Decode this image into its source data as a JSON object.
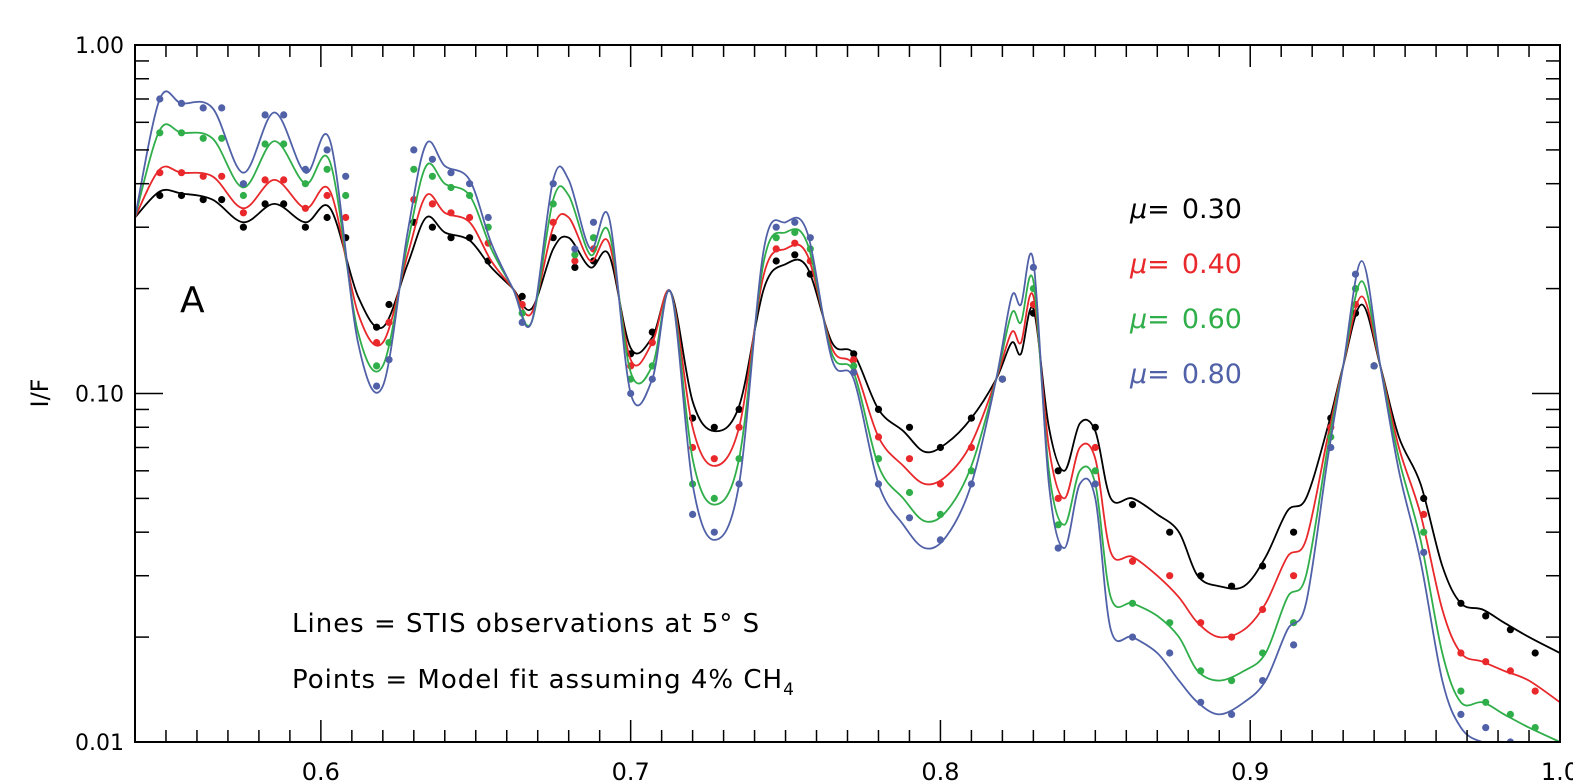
{
  "chart_data": {
    "type": "line",
    "title": "",
    "xlabel": "",
    "ylabel": "I/F",
    "panel_label": "A",
    "ylog": true,
    "xlim": [
      0.54,
      1.0
    ],
    "ylim": [
      0.01,
      1.0
    ],
    "x_ticks": [
      "0.6",
      "0.7",
      "0.8",
      "0.9",
      "1.0"
    ],
    "y_ticks": [
      "1.00",
      "0.10",
      "0.01"
    ],
    "grid": false,
    "legend_position": "top-right",
    "annotations": {
      "line1": "Lines = STIS observations at 5° S",
      "line2_prefix": "Points = Model fit assuming 4% CH",
      "line2_sub": "4"
    },
    "series": [
      {
        "name": "μ= 0.30",
        "mu_symbol": "μ=",
        "mu_value": "0.30",
        "color": "#000000",
        "x": [
          0.54,
          0.548,
          0.555,
          0.565,
          0.575,
          0.585,
          0.595,
          0.603,
          0.612,
          0.62,
          0.628,
          0.634,
          0.64,
          0.648,
          0.655,
          0.662,
          0.668,
          0.675,
          0.68,
          0.687,
          0.693,
          0.7,
          0.707,
          0.713,
          0.72,
          0.727,
          0.735,
          0.743,
          0.75,
          0.757,
          0.765,
          0.772,
          0.78,
          0.788,
          0.795,
          0.802,
          0.81,
          0.818,
          0.823,
          0.826,
          0.83,
          0.835,
          0.84,
          0.845,
          0.85,
          0.855,
          0.862,
          0.87,
          0.877,
          0.883,
          0.89,
          0.898,
          0.905,
          0.912,
          0.918,
          0.925,
          0.93,
          0.936,
          0.942,
          0.948,
          0.955,
          0.962,
          0.968,
          0.975,
          0.982,
          0.99,
          1.0
        ],
        "values": [
          0.32,
          0.38,
          0.375,
          0.36,
          0.31,
          0.35,
          0.31,
          0.34,
          0.19,
          0.155,
          0.235,
          0.32,
          0.29,
          0.275,
          0.23,
          0.2,
          0.175,
          0.26,
          0.28,
          0.23,
          0.25,
          0.135,
          0.145,
          0.195,
          0.095,
          0.078,
          0.092,
          0.2,
          0.235,
          0.23,
          0.14,
          0.13,
          0.09,
          0.078,
          0.068,
          0.072,
          0.085,
          0.11,
          0.14,
          0.13,
          0.175,
          0.08,
          0.06,
          0.082,
          0.078,
          0.05,
          0.05,
          0.045,
          0.04,
          0.03,
          0.028,
          0.028,
          0.034,
          0.046,
          0.05,
          0.08,
          0.12,
          0.18,
          0.12,
          0.075,
          0.055,
          0.032,
          0.025,
          0.024,
          0.022,
          0.02,
          0.018
        ],
        "points_x": [
          0.548,
          0.555,
          0.562,
          0.568,
          0.575,
          0.582,
          0.588,
          0.595,
          0.602,
          0.608,
          0.618,
          0.622,
          0.63,
          0.636,
          0.642,
          0.648,
          0.654,
          0.665,
          0.675,
          0.682,
          0.688,
          0.7,
          0.707,
          0.72,
          0.727,
          0.735,
          0.747,
          0.753,
          0.758,
          0.772,
          0.78,
          0.79,
          0.8,
          0.81,
          0.82,
          0.83,
          0.838,
          0.85,
          0.862,
          0.874,
          0.884,
          0.894,
          0.904,
          0.914,
          0.926,
          0.934,
          0.94,
          0.956,
          0.968,
          0.976,
          0.984,
          0.992
        ],
        "points_y": [
          0.37,
          0.37,
          0.36,
          0.36,
          0.3,
          0.35,
          0.35,
          0.3,
          0.32,
          0.28,
          0.155,
          0.18,
          0.31,
          0.3,
          0.28,
          0.28,
          0.24,
          0.19,
          0.28,
          0.23,
          0.24,
          0.13,
          0.15,
          0.085,
          0.08,
          0.09,
          0.24,
          0.25,
          0.22,
          0.13,
          0.09,
          0.08,
          0.07,
          0.085,
          0.11,
          0.17,
          0.06,
          0.08,
          0.048,
          0.04,
          0.03,
          0.028,
          0.032,
          0.04,
          0.085,
          0.17,
          0.12,
          0.05,
          0.025,
          0.023,
          0.021,
          0.018
        ]
      },
      {
        "name": "μ= 0.40",
        "mu_symbol": "μ=",
        "mu_value": "0.40",
        "color": "#e8282b",
        "x": [
          0.54,
          0.548,
          0.555,
          0.565,
          0.575,
          0.585,
          0.595,
          0.603,
          0.612,
          0.62,
          0.628,
          0.634,
          0.64,
          0.648,
          0.655,
          0.662,
          0.668,
          0.675,
          0.68,
          0.687,
          0.693,
          0.7,
          0.707,
          0.713,
          0.72,
          0.727,
          0.735,
          0.743,
          0.75,
          0.757,
          0.765,
          0.772,
          0.78,
          0.788,
          0.795,
          0.802,
          0.81,
          0.818,
          0.823,
          0.826,
          0.83,
          0.835,
          0.84,
          0.845,
          0.85,
          0.855,
          0.862,
          0.87,
          0.877,
          0.883,
          0.89,
          0.898,
          0.905,
          0.912,
          0.918,
          0.925,
          0.93,
          0.936,
          0.942,
          0.948,
          0.955,
          0.962,
          0.968,
          0.975,
          0.982,
          0.99,
          1.0
        ],
        "values": [
          0.32,
          0.44,
          0.43,
          0.42,
          0.34,
          0.41,
          0.34,
          0.38,
          0.17,
          0.14,
          0.25,
          0.37,
          0.33,
          0.31,
          0.24,
          0.2,
          0.17,
          0.3,
          0.32,
          0.24,
          0.27,
          0.125,
          0.14,
          0.195,
          0.08,
          0.062,
          0.08,
          0.22,
          0.26,
          0.25,
          0.135,
          0.12,
          0.075,
          0.062,
          0.055,
          0.058,
          0.072,
          0.11,
          0.15,
          0.14,
          0.19,
          0.07,
          0.05,
          0.07,
          0.065,
          0.035,
          0.034,
          0.03,
          0.026,
          0.022,
          0.02,
          0.021,
          0.025,
          0.034,
          0.038,
          0.075,
          0.12,
          0.19,
          0.12,
          0.07,
          0.045,
          0.024,
          0.018,
          0.017,
          0.016,
          0.015,
          0.013
        ],
        "points_x": [
          0.548,
          0.555,
          0.562,
          0.568,
          0.575,
          0.582,
          0.588,
          0.595,
          0.602,
          0.608,
          0.618,
          0.622,
          0.63,
          0.636,
          0.642,
          0.648,
          0.654,
          0.665,
          0.675,
          0.682,
          0.688,
          0.7,
          0.707,
          0.72,
          0.727,
          0.735,
          0.747,
          0.753,
          0.758,
          0.772,
          0.78,
          0.79,
          0.8,
          0.81,
          0.82,
          0.83,
          0.838,
          0.85,
          0.862,
          0.874,
          0.884,
          0.894,
          0.904,
          0.914,
          0.926,
          0.934,
          0.94,
          0.956,
          0.968,
          0.976,
          0.984,
          0.992
        ],
        "points_y": [
          0.43,
          0.43,
          0.42,
          0.42,
          0.33,
          0.41,
          0.41,
          0.34,
          0.37,
          0.32,
          0.14,
          0.16,
          0.36,
          0.35,
          0.33,
          0.32,
          0.27,
          0.18,
          0.31,
          0.24,
          0.26,
          0.12,
          0.14,
          0.07,
          0.065,
          0.08,
          0.26,
          0.27,
          0.24,
          0.125,
          0.075,
          0.065,
          0.055,
          0.07,
          0.11,
          0.18,
          0.05,
          0.07,
          0.033,
          0.03,
          0.022,
          0.02,
          0.024,
          0.03,
          0.08,
          0.18,
          0.12,
          0.045,
          0.018,
          0.017,
          0.016,
          0.014
        ]
      },
      {
        "name": "μ= 0.60",
        "mu_symbol": "μ=",
        "mu_value": "0.60",
        "color": "#2fae4a",
        "x": [
          0.54,
          0.548,
          0.555,
          0.565,
          0.575,
          0.585,
          0.595,
          0.603,
          0.612,
          0.62,
          0.628,
          0.634,
          0.64,
          0.648,
          0.655,
          0.662,
          0.668,
          0.675,
          0.68,
          0.687,
          0.693,
          0.7,
          0.707,
          0.713,
          0.72,
          0.727,
          0.735,
          0.743,
          0.75,
          0.757,
          0.765,
          0.772,
          0.78,
          0.788,
          0.795,
          0.802,
          0.81,
          0.818,
          0.823,
          0.826,
          0.83,
          0.835,
          0.84,
          0.845,
          0.85,
          0.855,
          0.862,
          0.87,
          0.877,
          0.883,
          0.89,
          0.898,
          0.905,
          0.912,
          0.918,
          0.925,
          0.93,
          0.936,
          0.942,
          0.948,
          0.955,
          0.962,
          0.968,
          0.975,
          0.982,
          0.99,
          1.0
        ],
        "values": [
          0.32,
          0.57,
          0.56,
          0.54,
          0.39,
          0.53,
          0.4,
          0.46,
          0.15,
          0.12,
          0.27,
          0.45,
          0.4,
          0.37,
          0.26,
          0.2,
          0.16,
          0.36,
          0.37,
          0.25,
          0.29,
          0.115,
          0.12,
          0.195,
          0.065,
          0.048,
          0.065,
          0.24,
          0.29,
          0.27,
          0.13,
          0.115,
          0.062,
          0.05,
          0.043,
          0.046,
          0.062,
          0.11,
          0.17,
          0.16,
          0.21,
          0.06,
          0.042,
          0.06,
          0.055,
          0.026,
          0.025,
          0.023,
          0.02,
          0.016,
          0.015,
          0.016,
          0.018,
          0.026,
          0.03,
          0.07,
          0.12,
          0.21,
          0.12,
          0.065,
          0.038,
          0.018,
          0.013,
          0.013,
          0.012,
          0.011,
          0.01
        ],
        "points_x": [
          0.548,
          0.555,
          0.562,
          0.568,
          0.575,
          0.582,
          0.588,
          0.595,
          0.602,
          0.608,
          0.618,
          0.622,
          0.63,
          0.636,
          0.642,
          0.648,
          0.654,
          0.665,
          0.675,
          0.682,
          0.688,
          0.7,
          0.707,
          0.72,
          0.727,
          0.735,
          0.747,
          0.753,
          0.758,
          0.772,
          0.78,
          0.79,
          0.8,
          0.81,
          0.82,
          0.83,
          0.838,
          0.85,
          0.862,
          0.874,
          0.884,
          0.894,
          0.904,
          0.914,
          0.926,
          0.934,
          0.94,
          0.956,
          0.968,
          0.976,
          0.984,
          0.992
        ],
        "points_y": [
          0.56,
          0.56,
          0.54,
          0.54,
          0.37,
          0.52,
          0.52,
          0.4,
          0.44,
          0.37,
          0.12,
          0.14,
          0.44,
          0.42,
          0.39,
          0.37,
          0.3,
          0.17,
          0.35,
          0.25,
          0.28,
          0.11,
          0.12,
          0.055,
          0.05,
          0.065,
          0.28,
          0.29,
          0.26,
          0.12,
          0.065,
          0.052,
          0.045,
          0.06,
          0.11,
          0.2,
          0.042,
          0.06,
          0.025,
          0.022,
          0.016,
          0.015,
          0.018,
          0.022,
          0.075,
          0.2,
          0.12,
          0.04,
          0.014,
          0.013,
          0.012,
          0.011
        ]
      },
      {
        "name": "μ= 0.80",
        "mu_symbol": "μ=",
        "mu_value": "0.80",
        "color": "#5061a8",
        "x": [
          0.54,
          0.548,
          0.555,
          0.565,
          0.575,
          0.585,
          0.595,
          0.603,
          0.612,
          0.62,
          0.628,
          0.634,
          0.64,
          0.648,
          0.655,
          0.662,
          0.668,
          0.675,
          0.68,
          0.687,
          0.693,
          0.7,
          0.707,
          0.713,
          0.72,
          0.727,
          0.735,
          0.743,
          0.75,
          0.757,
          0.765,
          0.772,
          0.78,
          0.788,
          0.795,
          0.802,
          0.81,
          0.818,
          0.823,
          0.826,
          0.83,
          0.835,
          0.84,
          0.845,
          0.85,
          0.855,
          0.862,
          0.87,
          0.877,
          0.883,
          0.89,
          0.898,
          0.905,
          0.912,
          0.918,
          0.925,
          0.93,
          0.936,
          0.942,
          0.948,
          0.955,
          0.962,
          0.968,
          0.975,
          0.982,
          0.99,
          1.0
        ],
        "values": [
          0.32,
          0.7,
          0.68,
          0.66,
          0.43,
          0.64,
          0.43,
          0.53,
          0.14,
          0.105,
          0.29,
          0.52,
          0.45,
          0.41,
          0.27,
          0.2,
          0.16,
          0.41,
          0.41,
          0.26,
          0.32,
          0.1,
          0.11,
          0.195,
          0.055,
          0.038,
          0.055,
          0.26,
          0.31,
          0.29,
          0.125,
          0.11,
          0.055,
          0.042,
          0.036,
          0.039,
          0.055,
          0.11,
          0.19,
          0.18,
          0.24,
          0.055,
          0.036,
          0.055,
          0.05,
          0.021,
          0.02,
          0.018,
          0.015,
          0.013,
          0.012,
          0.013,
          0.015,
          0.021,
          0.025,
          0.065,
          0.12,
          0.24,
          0.12,
          0.06,
          0.033,
          0.015,
          0.011,
          0.01,
          0.01,
          0.0095,
          0.009
        ],
        "points_x": [
          0.548,
          0.555,
          0.562,
          0.568,
          0.575,
          0.582,
          0.588,
          0.595,
          0.602,
          0.608,
          0.618,
          0.622,
          0.63,
          0.636,
          0.642,
          0.648,
          0.654,
          0.665,
          0.675,
          0.682,
          0.688,
          0.7,
          0.707,
          0.72,
          0.727,
          0.735,
          0.747,
          0.753,
          0.758,
          0.772,
          0.78,
          0.79,
          0.8,
          0.81,
          0.82,
          0.83,
          0.838,
          0.85,
          0.862,
          0.874,
          0.884,
          0.894,
          0.904,
          0.914,
          0.926,
          0.934,
          0.94,
          0.956,
          0.968,
          0.976,
          0.984,
          0.992
        ],
        "points_y": [
          0.7,
          0.68,
          0.66,
          0.66,
          0.4,
          0.63,
          0.63,
          0.44,
          0.5,
          0.42,
          0.105,
          0.125,
          0.5,
          0.47,
          0.43,
          0.4,
          0.32,
          0.16,
          0.4,
          0.26,
          0.31,
          0.1,
          0.11,
          0.045,
          0.04,
          0.055,
          0.3,
          0.31,
          0.28,
          0.115,
          0.055,
          0.044,
          0.038,
          0.055,
          0.11,
          0.23,
          0.036,
          0.055,
          0.02,
          0.018,
          0.013,
          0.012,
          0.015,
          0.019,
          0.07,
          0.22,
          0.12,
          0.035,
          0.012,
          0.011,
          0.01,
          0.0095
        ]
      }
    ]
  }
}
